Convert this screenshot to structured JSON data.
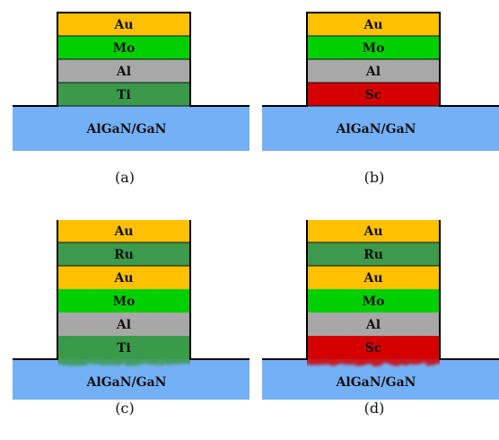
{
  "colors": {
    "Au": "#ffc000",
    "Mo": "#00d000",
    "Al": "#a8a8a8",
    "Ti": "#3a9a4a",
    "Sc": "#d40000",
    "Ru": "#3c9a4c",
    "substrate": "#74b0f5",
    "outline": "#000000"
  },
  "panels": [
    {
      "id": "a",
      "caption": "(a)",
      "substrate": "AlGaN/GaN",
      "annealed": false,
      "layers": [
        "Au",
        "Mo",
        "Al",
        "Ti"
      ]
    },
    {
      "id": "b",
      "caption": "(b)",
      "substrate": "AlGaN/GaN",
      "annealed": false,
      "layers": [
        "Au",
        "Mo",
        "Al",
        "Sc"
      ]
    },
    {
      "id": "c",
      "caption": "(c)",
      "substrate": "AlGaN/GaN",
      "annealed": true,
      "layers": [
        "Au",
        "Ru",
        "Au",
        "Mo",
        "Al",
        "Ti"
      ]
    },
    {
      "id": "d",
      "caption": "(d)",
      "substrate": "AlGaN/GaN",
      "annealed": true,
      "layers": [
        "Au",
        "Ru",
        "Au",
        "Mo",
        "Al",
        "Sc"
      ]
    }
  ]
}
